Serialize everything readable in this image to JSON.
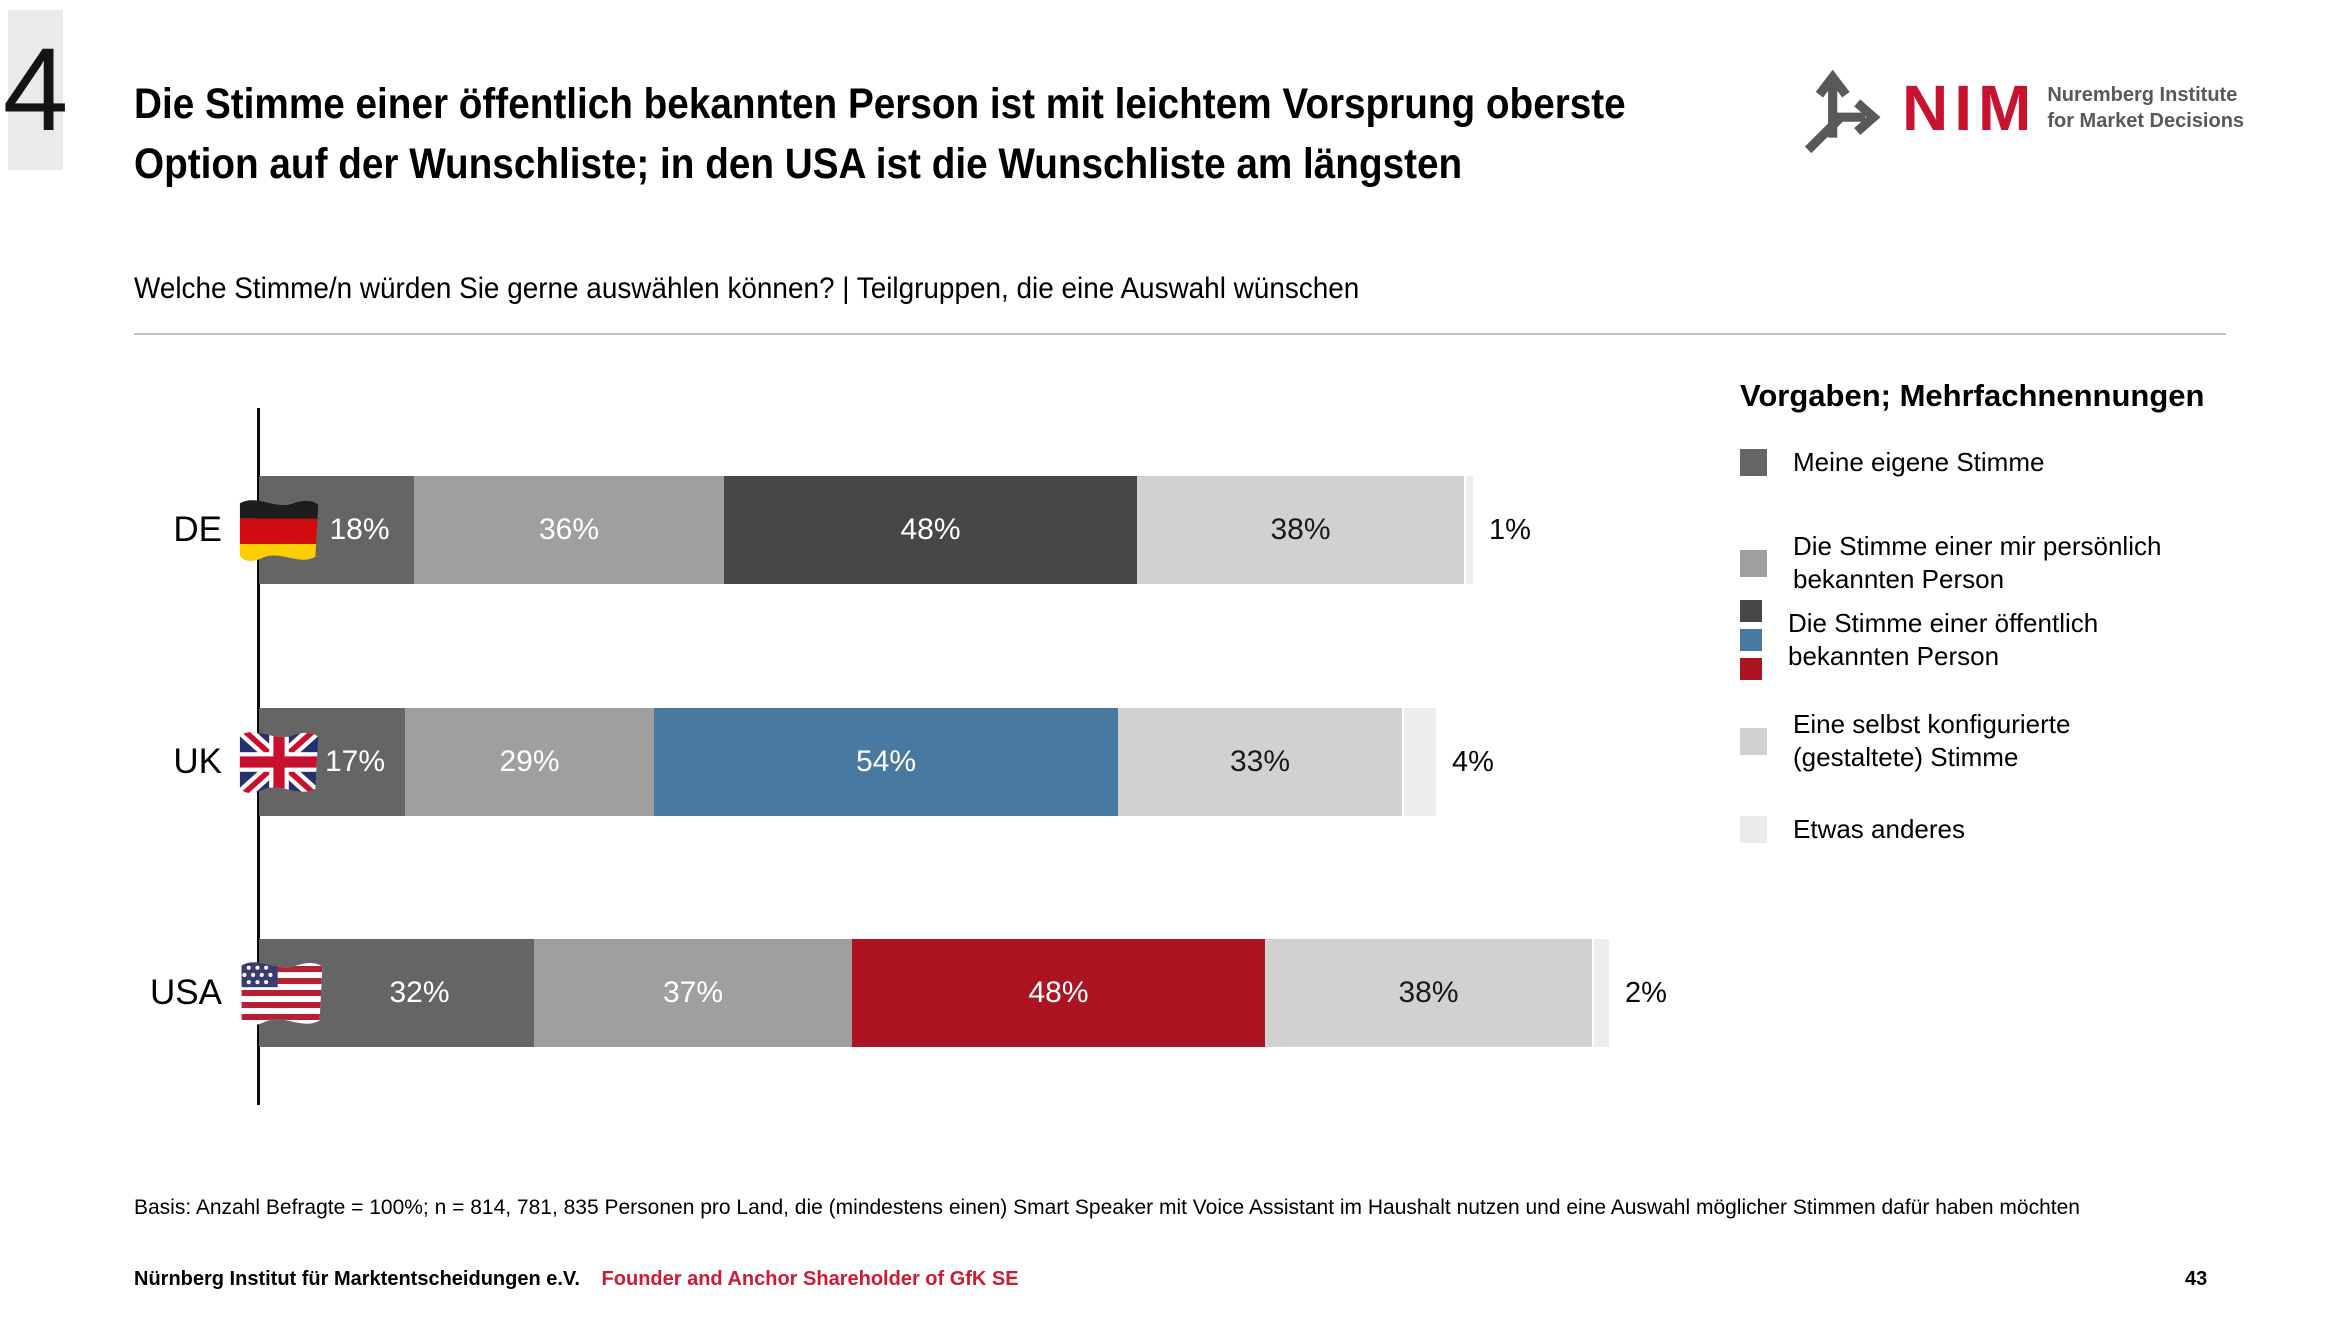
{
  "slide": {
    "number": "4",
    "title_line1": "Die Stimme einer öffentlich bekannten Person ist mit leichtem Vorsprung oberste",
    "title_line2": "Option auf der Wunschliste; in den USA ist die Wunschliste am längsten",
    "subtitle": "Welche Stimme/n würden Sie gerne auswählen können? | Teilgruppen, die eine Auswahl wünschen"
  },
  "logo": {
    "name": "NIM",
    "tagline_line1": "Nuremberg Institute",
    "tagline_line2": "for Market Decisions",
    "red": "#C8122E",
    "gray": "#595959"
  },
  "legend": {
    "title": "Vorgaben; Mehrfachnennungen",
    "items": [
      {
        "label": "Meine eigene Stimme",
        "swatch": [
          "#656565"
        ]
      },
      {
        "label": "Die Stimme einer mir persönlich bekannten Person",
        "swatch": [
          "#9F9F9F"
        ]
      },
      {
        "label": "Die Stimme einer öffentlich bekannten Person",
        "swatch": [
          "#474747",
          "#4879A1",
          "#AC1421"
        ]
      },
      {
        "label": "Eine selbst konfigurierte (gestaltete) Stimme",
        "swatch": [
          "#D1D1D1"
        ]
      },
      {
        "label": "Etwas anderes",
        "swatch": [
          "#EBEBEB"
        ]
      }
    ]
  },
  "chart_data": {
    "type": "bar",
    "orientation": "horizontal-stacked",
    "unit": "%",
    "categories": [
      "DE",
      "UK",
      "USA"
    ],
    "flags": [
      "de-flag-icon",
      "uk-flag-icon",
      "usa-flag-icon"
    ],
    "series": [
      {
        "name": "Meine eigene Stimme",
        "values": [
          18,
          17,
          32
        ],
        "color": "#656565"
      },
      {
        "name": "Die Stimme einer mir persönlich bekannten Person",
        "values": [
          36,
          29,
          37
        ],
        "color": "#9F9F9F"
      },
      {
        "name": "Die Stimme einer öffentlich bekannten Person",
        "values": [
          48,
          54,
          48
        ],
        "colors": [
          "#474747",
          "#4879A1",
          "#AC1421"
        ]
      },
      {
        "name": "Eine selbst konfigurierte (gestaltete) Stimme",
        "values": [
          38,
          33,
          38
        ],
        "color": "#D1D1D1"
      },
      {
        "name": "Etwas anderes",
        "values": [
          1,
          4,
          2
        ],
        "color": "#EDEDED"
      }
    ],
    "value_labels_inside": [
      "18%",
      "36%",
      "48%",
      "38%",
      "17%",
      "29%",
      "54%",
      "33%",
      "32%",
      "37%",
      "48%",
      "38%"
    ],
    "value_labels_outside": [
      "1%",
      "4%",
      "2%"
    ],
    "xlim": [
      0,
      160
    ],
    "grid": false,
    "legend_position": "right"
  },
  "footer": {
    "basis": "Basis: Anzahl Befragte = 100%; n = 814, 781, 835 Personen pro Land, die (mindestens einen) Smart Speaker mit Voice Assistant im Haushalt nutzen und eine Auswahl möglicher Stimmen dafür haben möchten",
    "org": "Nürnberg Institut für Marktentscheidungen e.V.",
    "shareholder": "Founder and Anchor Shareholder of GfK SE",
    "page": "43"
  }
}
